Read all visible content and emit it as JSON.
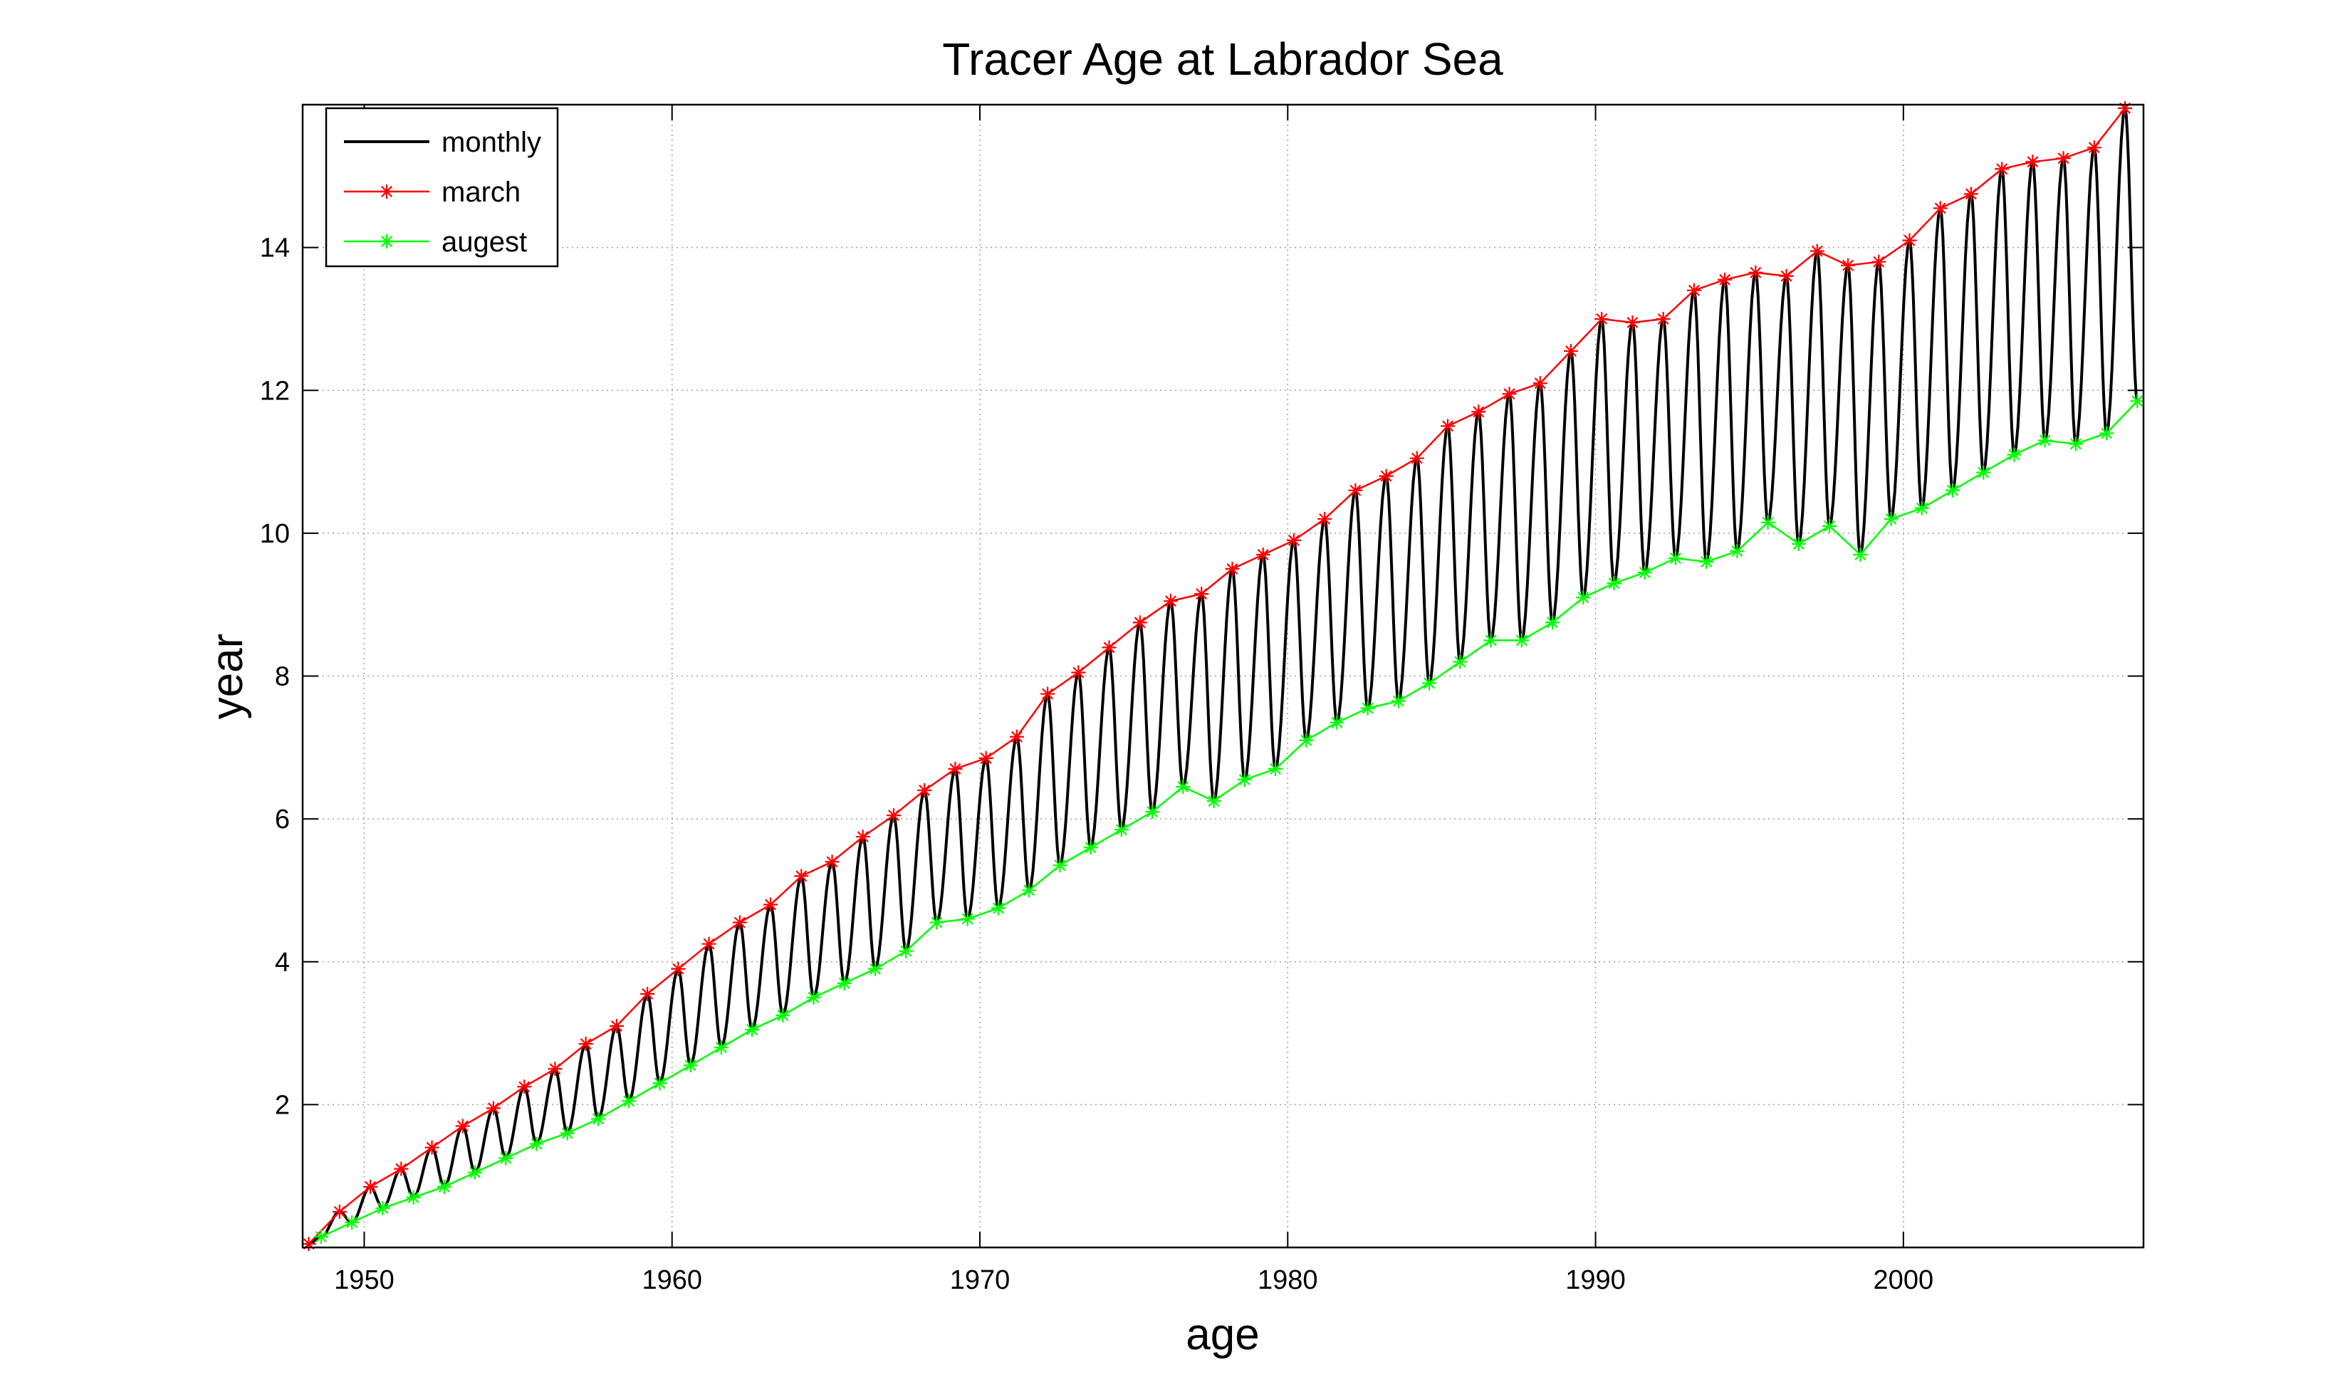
{
  "chart_data": {
    "type": "line",
    "title": "Tracer Age at Labrador Sea",
    "xlabel": "age",
    "ylabel": "year",
    "xlim": [
      1948,
      2007.8
    ],
    "ylim": [
      0,
      16
    ],
    "xticks": [
      1950,
      1960,
      1970,
      1980,
      1990,
      2000
    ],
    "yticks": [
      2,
      4,
      6,
      8,
      10,
      12,
      14
    ],
    "grid": true,
    "legend_position": "top-left",
    "legend": [
      "monthly",
      "march",
      "augest"
    ],
    "series": [
      {
        "name": "monthly",
        "color": "#000000",
        "marker": "none",
        "description_source": "derived: oscillates each year between march (peak) and augest (trough) values",
        "values_from": [
          "march",
          "augest"
        ]
      },
      {
        "name": "march",
        "color": "#ff0000",
        "marker": "asterisk",
        "x": [
          1948.2,
          1949.2,
          1950.2,
          1951.2,
          1952.2,
          1953.2,
          1954.2,
          1955.2,
          1956.2,
          1957.2,
          1958.2,
          1959.2,
          1960.2,
          1961.2,
          1962.2,
          1963.2,
          1964.2,
          1965.2,
          1966.2,
          1967.2,
          1968.2,
          1969.2,
          1970.2,
          1971.2,
          1972.2,
          1973.2,
          1974.2,
          1975.2,
          1976.2,
          1977.2,
          1978.2,
          1979.2,
          1980.2,
          1981.2,
          1982.2,
          1983.2,
          1984.2,
          1985.2,
          1986.2,
          1987.2,
          1988.2,
          1989.2,
          1990.2,
          1991.2,
          1992.2,
          1993.2,
          1994.2,
          1995.2,
          1996.2,
          1997.2,
          1998.2,
          1999.2,
          2000.2,
          2001.2,
          2002.2,
          2003.2,
          2004.2,
          2005.2,
          2006.2,
          2007.2
        ],
        "values": [
          0.05,
          0.5,
          0.85,
          1.1,
          1.4,
          1.7,
          1.95,
          2.25,
          2.5,
          2.85,
          3.1,
          3.55,
          3.9,
          4.25,
          4.55,
          4.8,
          5.2,
          5.4,
          5.75,
          6.05,
          6.4,
          6.7,
          6.85,
          7.15,
          7.75,
          8.05,
          8.4,
          8.75,
          9.05,
          9.15,
          9.5,
          9.7,
          9.9,
          10.2,
          10.6,
          10.8,
          11.05,
          11.5,
          11.7,
          11.95,
          12.1,
          12.55,
          13.0,
          12.95,
          13.0,
          13.4,
          13.55,
          13.65,
          13.6,
          13.95,
          13.75,
          13.8,
          14.1,
          14.55,
          14.75,
          15.1,
          15.2,
          15.25,
          15.4,
          15.95
        ]
      },
      {
        "name": "augest",
        "color": "#00ff00",
        "marker": "asterisk",
        "x": [
          1948.6,
          1949.6,
          1950.6,
          1951.6,
          1952.6,
          1953.6,
          1954.6,
          1955.6,
          1956.6,
          1957.6,
          1958.6,
          1959.6,
          1960.6,
          1961.6,
          1962.6,
          1963.6,
          1964.6,
          1965.6,
          1966.6,
          1967.6,
          1968.6,
          1969.6,
          1970.6,
          1971.6,
          1972.6,
          1973.6,
          1974.6,
          1975.6,
          1976.6,
          1977.6,
          1978.6,
          1979.6,
          1980.6,
          1981.6,
          1982.6,
          1983.6,
          1984.6,
          1985.6,
          1986.6,
          1987.6,
          1988.6,
          1989.6,
          1990.6,
          1991.6,
          1992.6,
          1993.6,
          1994.6,
          1995.6,
          1996.6,
          1997.6,
          1998.6,
          1999.6,
          2000.6,
          2001.6,
          2002.6,
          2003.6,
          2004.6,
          2005.6,
          2006.6,
          2007.6
        ],
        "values": [
          0.15,
          0.35,
          0.55,
          0.7,
          0.85,
          1.05,
          1.25,
          1.45,
          1.6,
          1.8,
          2.05,
          2.3,
          2.55,
          2.8,
          3.05,
          3.25,
          3.5,
          3.7,
          3.9,
          4.15,
          4.55,
          4.6,
          4.75,
          5.0,
          5.35,
          5.6,
          5.85,
          6.1,
          6.45,
          6.25,
          6.55,
          6.7,
          7.1,
          7.35,
          7.55,
          7.65,
          7.9,
          8.2,
          8.5,
          8.5,
          8.75,
          9.1,
          9.3,
          9.45,
          9.65,
          9.6,
          9.75,
          10.15,
          9.85,
          10.1,
          9.7,
          10.2,
          10.35,
          10.6,
          10.85,
          11.1,
          11.3,
          11.25,
          11.4,
          11.85
        ]
      }
    ]
  }
}
